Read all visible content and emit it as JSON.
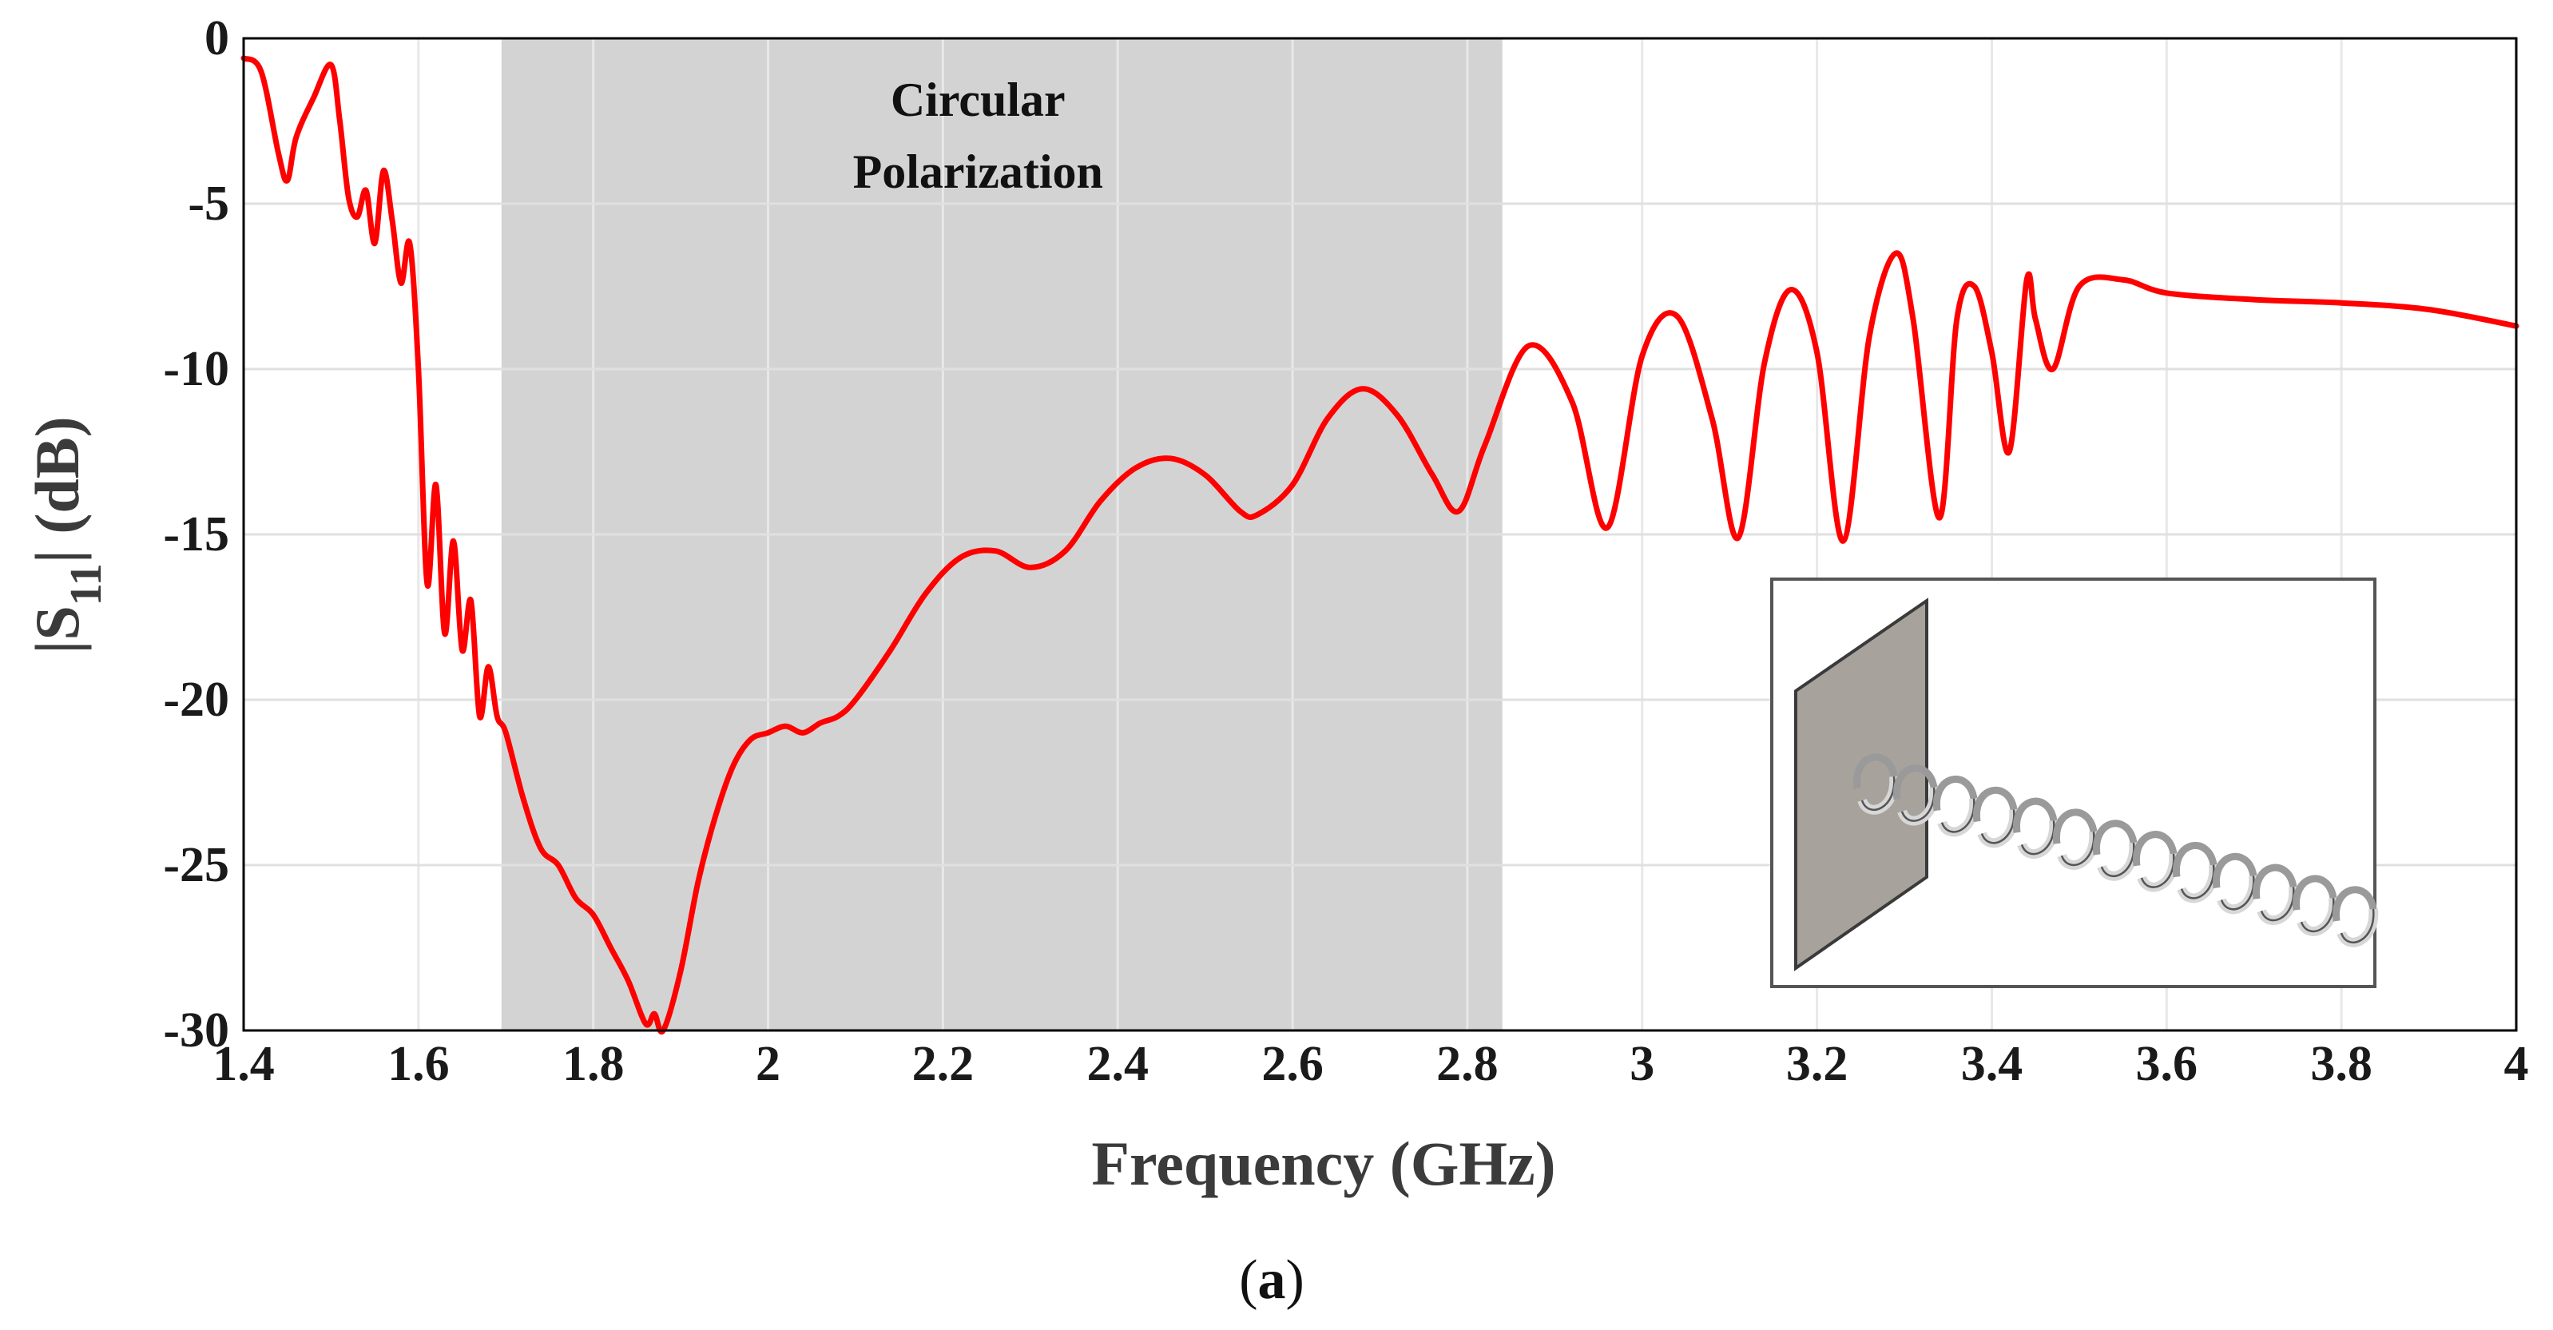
{
  "chart_data": {
    "type": "line",
    "title": "",
    "xlabel": "Frequency (GHz)",
    "ylabel_parts": {
      "open": "|S",
      "sub": "11",
      "close": "| (dB)"
    },
    "xlim": [
      1.4,
      4.0
    ],
    "ylim": [
      -30,
      0
    ],
    "xticks": [
      1.4,
      1.6,
      1.8,
      2.0,
      2.2,
      2.4,
      2.6,
      2.8,
      3.0,
      3.2,
      3.4,
      3.6,
      3.8,
      4.0
    ],
    "xtick_labels": [
      "1.4",
      "1.6",
      "1.8",
      "2",
      "2.2",
      "2.4",
      "2.6",
      "2.8",
      "3",
      "3.2",
      "3.4",
      "3.6",
      "3.8",
      "4"
    ],
    "yticks": [
      0,
      -5,
      -10,
      -15,
      -20,
      -25,
      -30
    ],
    "ytick_labels": [
      "0",
      "-5",
      "-10",
      "-15",
      "-20",
      "-25",
      "-30"
    ],
    "grid": true,
    "shaded_band": {
      "x_start": 1.695,
      "x_end": 2.84,
      "label_line1": "Circular",
      "label_line2": "Polarization"
    },
    "series": [
      {
        "name": "S11",
        "color": "#ff0000",
        "x": [
          1.4,
          1.42,
          1.44,
          1.45,
          1.46,
          1.48,
          1.5,
          1.51,
          1.52,
          1.53,
          1.54,
          1.55,
          1.56,
          1.57,
          1.58,
          1.59,
          1.6,
          1.61,
          1.62,
          1.63,
          1.64,
          1.65,
          1.66,
          1.67,
          1.68,
          1.69,
          1.7,
          1.72,
          1.74,
          1.76,
          1.78,
          1.8,
          1.82,
          1.84,
          1.86,
          1.87,
          1.88,
          1.9,
          1.92,
          1.94,
          1.96,
          1.98,
          2.0,
          2.02,
          2.04,
          2.06,
          2.08,
          2.1,
          2.14,
          2.18,
          2.22,
          2.26,
          2.3,
          2.34,
          2.38,
          2.42,
          2.46,
          2.5,
          2.54,
          2.56,
          2.6,
          2.64,
          2.68,
          2.72,
          2.76,
          2.79,
          2.82,
          2.87,
          2.92,
          2.96,
          3.0,
          3.04,
          3.08,
          3.11,
          3.14,
          3.17,
          3.2,
          3.23,
          3.26,
          3.29,
          3.31,
          3.34,
          3.36,
          3.38,
          3.4,
          3.42,
          3.44,
          3.45,
          3.47,
          3.5,
          3.55,
          3.6,
          3.7,
          3.8,
          3.9,
          4.0
        ],
        "y": [
          -0.6,
          -1.0,
          -3.5,
          -4.3,
          -3.0,
          -1.8,
          -0.8,
          -2.5,
          -4.8,
          -5.4,
          -4.6,
          -6.2,
          -4.0,
          -5.5,
          -7.4,
          -6.2,
          -10.0,
          -16.5,
          -13.5,
          -18.0,
          -15.2,
          -18.5,
          -17.0,
          -20.5,
          -19.0,
          -20.5,
          -21.0,
          -23.0,
          -24.5,
          -25.0,
          -26.0,
          -26.5,
          -27.5,
          -28.5,
          -29.8,
          -29.5,
          -30.2,
          -28.2,
          -25.5,
          -23.5,
          -22.0,
          -21.2,
          -21.0,
          -20.8,
          -21.0,
          -20.7,
          -20.5,
          -20.0,
          -18.5,
          -16.8,
          -15.7,
          -15.5,
          -16.0,
          -15.5,
          -14.0,
          -13.0,
          -12.7,
          -13.2,
          -14.3,
          -14.4,
          -13.5,
          -11.5,
          -10.6,
          -11.4,
          -13.2,
          -14.3,
          -12.3,
          -9.3,
          -11.0,
          -14.8,
          -9.6,
          -8.4,
          -11.5,
          -15.1,
          -9.8,
          -7.6,
          -9.5,
          -15.2,
          -9.0,
          -6.5,
          -8.5,
          -14.5,
          -8.5,
          -7.5,
          -9.5,
          -12.5,
          -7.3,
          -8.5,
          -10.0,
          -7.5,
          -7.3,
          -7.7,
          -7.9,
          -8.0,
          -8.2,
          -8.7
        ]
      }
    ],
    "inset": "helical antenna with square ground plane",
    "caption": {
      "paren_open": "(",
      "letter": "a",
      "paren_close": ")"
    }
  }
}
